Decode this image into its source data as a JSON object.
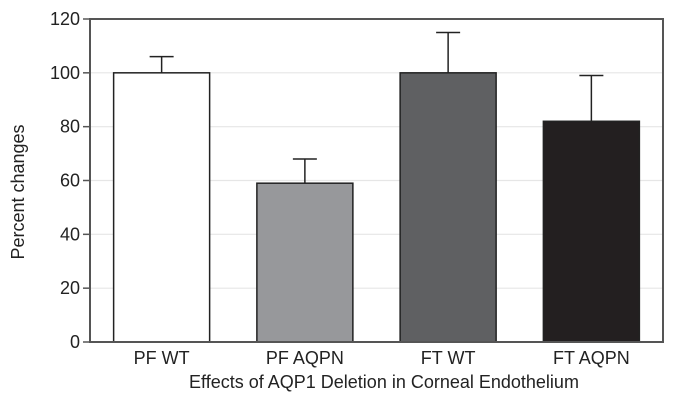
{
  "chart_data": {
    "type": "bar",
    "title": "",
    "xlabel": "Effects of AQP1 Deletion in Corneal Endothelium",
    "ylabel": "Percent changes",
    "categories": [
      "PF WT",
      "PF AQPN",
      "FT WT",
      "FT AQPN"
    ],
    "values": [
      100,
      59,
      100,
      82
    ],
    "error_upper": [
      106,
      68,
      115,
      99
    ],
    "bar_colors": [
      "#ffffff",
      "#97989b",
      "#5f6062",
      "#231f20"
    ],
    "ylim": [
      0,
      120
    ],
    "yticks": [
      0,
      20,
      40,
      60,
      80,
      100,
      120
    ],
    "grid": true,
    "legend": "none"
  }
}
